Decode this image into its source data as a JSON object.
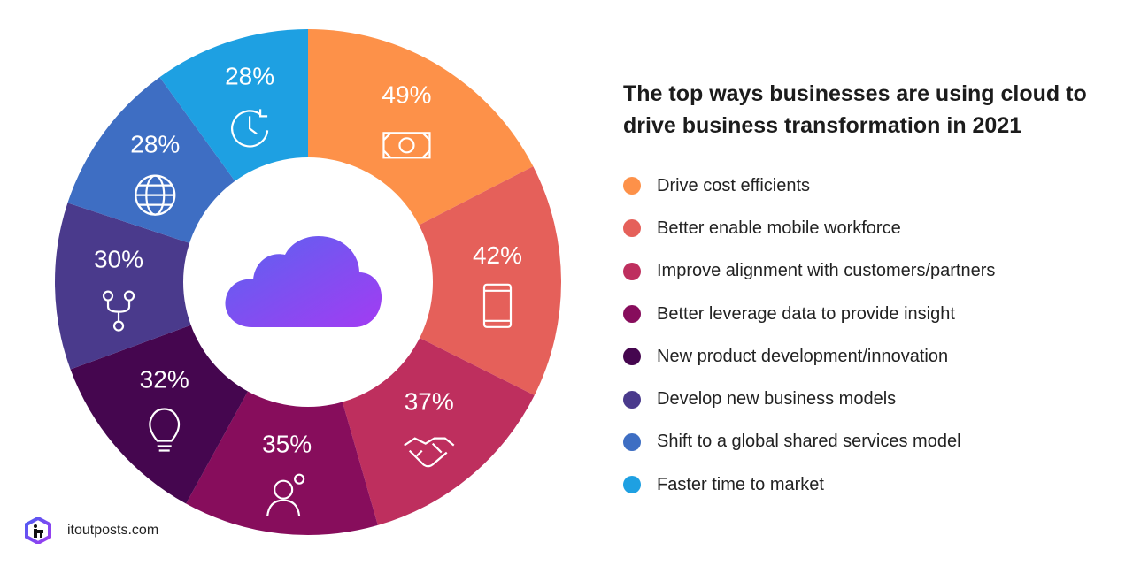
{
  "chart_data": {
    "type": "pie",
    "donut": true,
    "title": "The top ways businesses are using cloud to drive business transformation in 2021",
    "legend_position": "right",
    "center_icon": "cloud-icon",
    "slices": [
      {
        "label": "Drive cost efficients",
        "value": 49,
        "display": "49%",
        "color": "#FD9149",
        "icon": "money-icon"
      },
      {
        "label": "Better enable mobile workforce",
        "value": 42,
        "display": "42%",
        "color": "#E5605A",
        "icon": "mobile-phone-icon"
      },
      {
        "label": "Improve alignment with customers/partners",
        "value": 37,
        "display": "37%",
        "color": "#BE2F5E",
        "icon": "handshake-icon"
      },
      {
        "label": "Better leverage data to provide insight",
        "value": 35,
        "display": "35%",
        "color": "#870D5C",
        "icon": "user-gear-icon"
      },
      {
        "label": "New product development/innovation",
        "value": 32,
        "display": "32%",
        "color": "#45064F",
        "icon": "lightbulb-icon"
      },
      {
        "label": "Develop new business models",
        "value": 30,
        "display": "30%",
        "color": "#4A3A8C",
        "icon": "branch-icon"
      },
      {
        "label": "Shift to a global shared services model",
        "value": 28,
        "display": "28%",
        "color": "#3E6EC3",
        "icon": "globe-icon"
      },
      {
        "label": "Faster time to market",
        "value": 28,
        "display": "28%",
        "color": "#1EA0E2",
        "icon": "clock-icon"
      }
    ]
  },
  "brand": {
    "text": "itoutposts.com",
    "logo_icon": "itoutposts-logo-icon"
  }
}
